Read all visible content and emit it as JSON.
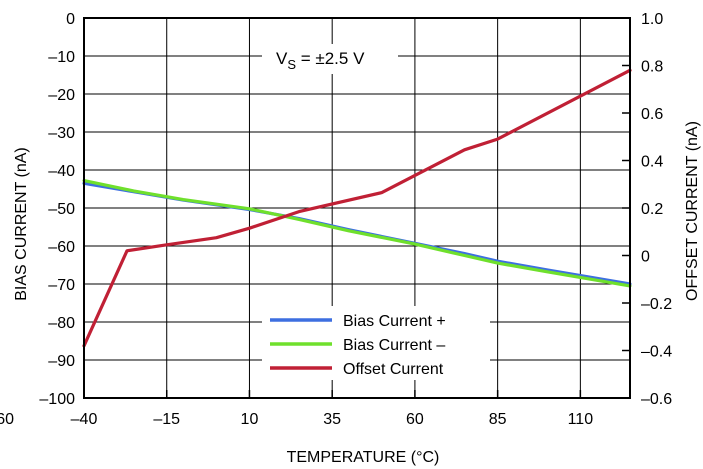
{
  "chart_data": {
    "type": "line",
    "xlabel": "TEMPERATURE (°C)",
    "ylabel": "BIAS CURRENT (nA)",
    "y2label": "OFFSET CURRENT (nA)",
    "annotation_main": "V",
    "annotation_sub": "S",
    "annotation_rest": " = ±2.5 V",
    "xlim": [
      -40,
      125
    ],
    "ylim": [
      -100,
      0
    ],
    "y2lim": [
      -0.6,
      1.0
    ],
    "x_ticks": [
      -40,
      -15,
      10,
      35,
      60,
      85,
      110
    ],
    "x_tick_labels": [
      "–40",
      "–15",
      "10",
      "35",
      "60",
      "85",
      "110"
    ],
    "x_clipped_left_label": "60",
    "y_ticks": [
      0,
      -10,
      -20,
      -30,
      -40,
      -50,
      -60,
      -70,
      -80,
      -90,
      -100
    ],
    "y_tick_labels": [
      "0",
      "–10",
      "–20",
      "–30",
      "–40",
      "–50",
      "–60",
      "–70",
      "–80",
      "–90",
      "–100"
    ],
    "y2_ticks": [
      1.0,
      0.8,
      0.6,
      0.4,
      0.2,
      0,
      -0.2,
      -0.4,
      -0.6
    ],
    "y2_tick_labels": [
      "1.0",
      "0.8",
      "0.6",
      "0.4",
      "0.2",
      "0",
      "–0.2",
      "–0.4",
      "–0.6"
    ],
    "grid": true,
    "legend_position": "bottom-right",
    "series": [
      {
        "name": "Bias Current +",
        "axis": "left",
        "color": "#3d6fe0",
        "x": [
          -40,
          -25,
          -10,
          10,
          25,
          40,
          60,
          75,
          85,
          100,
          125
        ],
        "y": [
          -43.5,
          -45.7,
          -47.9,
          -50.4,
          -52.8,
          -55.7,
          -59.3,
          -62.0,
          -64.0,
          -66.3,
          -70.0
        ]
      },
      {
        "name": "Bias Current –",
        "axis": "left",
        "color": "#6fe02c",
        "x": [
          -40,
          -25,
          -10,
          10,
          25,
          40,
          60,
          75,
          85,
          100,
          125
        ],
        "y": [
          -42.8,
          -45.5,
          -47.8,
          -50.2,
          -53.0,
          -56.0,
          -59.5,
          -62.5,
          -64.5,
          -66.8,
          -70.5
        ]
      },
      {
        "name": "Offset Current",
        "axis": "right",
        "color": "#c02035",
        "x": [
          -40,
          -27,
          -15,
          0,
          10,
          25,
          50,
          75,
          85,
          125
        ],
        "y": [
          -0.38,
          0.02,
          0.045,
          0.075,
          0.115,
          0.185,
          0.265,
          0.445,
          0.49,
          0.78
        ]
      }
    ]
  }
}
